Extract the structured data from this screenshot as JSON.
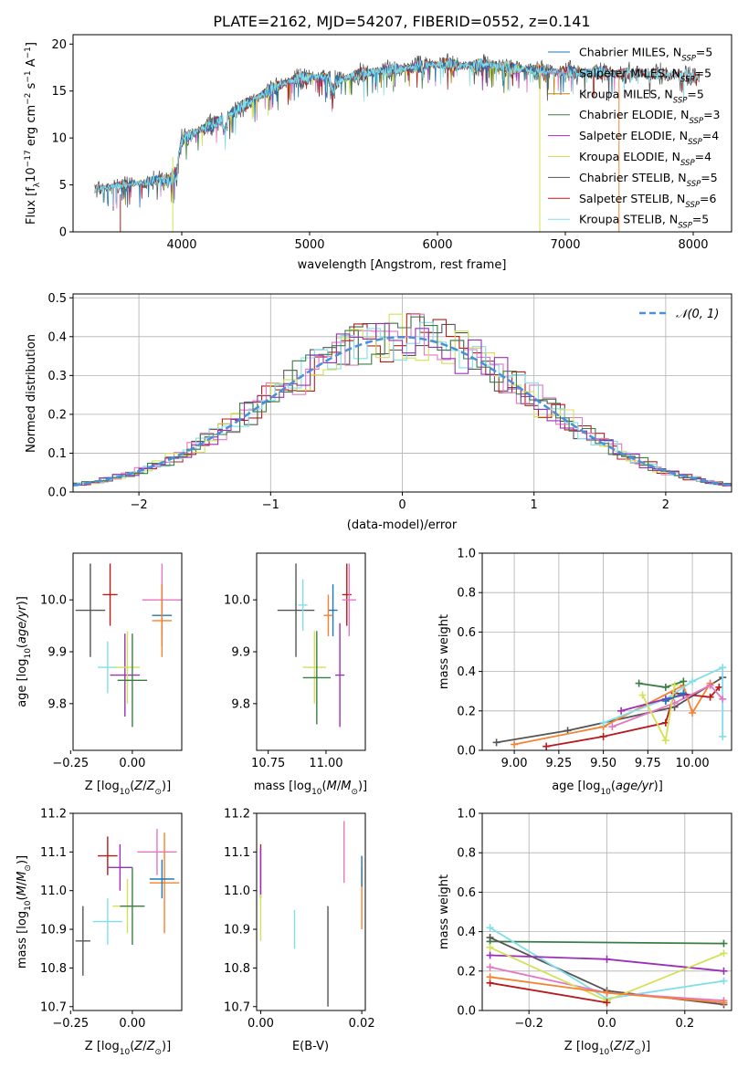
{
  "chart_data": [
    {
      "panel": "spectrum",
      "type": "line",
      "title": "PLATE=2162, MJD=54207, FIBERID=0552, z=0.141",
      "xlabel": "wavelength [Angstrom, rest frame]",
      "ylabel_parts": [
        "Flux [f",
        "λ",
        "10",
        "−17",
        " erg cm",
        "−2",
        " s",
        "−1",
        " A",
        "−1",
        "]"
      ],
      "xlim": [
        3150,
        8300
      ],
      "ylim": [
        0,
        21
      ],
      "xticks": [
        4000,
        5000,
        6000,
        7000,
        8000
      ],
      "yticks": [
        0,
        5,
        10,
        15,
        20
      ],
      "legend_position": "upper right",
      "anchors": [
        [
          3350,
          4.6
        ],
        [
          3500,
          5.0
        ],
        [
          3700,
          5.2
        ],
        [
          3800,
          5.6
        ],
        [
          3900,
          6.3
        ],
        [
          3960,
          7.0
        ],
        [
          4000,
          9.8
        ],
        [
          4100,
          10.6
        ],
        [
          4200,
          11.2
        ],
        [
          4300,
          11.9
        ],
        [
          4500,
          13.6
        ],
        [
          4700,
          15.2
        ],
        [
          4900,
          16.4
        ],
        [
          5100,
          16.5
        ],
        [
          5200,
          16.1
        ],
        [
          5400,
          16.8
        ],
        [
          5600,
          17.2
        ],
        [
          5800,
          17.5
        ],
        [
          6000,
          17.9
        ],
        [
          6200,
          17.7
        ],
        [
          6400,
          17.8
        ],
        [
          6600,
          17.4
        ],
        [
          6800,
          17.2
        ],
        [
          7000,
          17.0
        ],
        [
          7200,
          17.0
        ],
        [
          7400,
          16.9
        ],
        [
          7600,
          16.9
        ],
        [
          7800,
          16.8
        ],
        [
          8000,
          16.6
        ],
        [
          8050,
          16.5
        ]
      ],
      "series": [
        {
          "name_base": "Chabrier MILES, N",
          "name_sub": "SSP",
          "name_tail": "=5",
          "color": "#1f77b4",
          "x_range": [
            3320,
            7420
          ]
        },
        {
          "name_base": "Salpeter MILES, N",
          "name_sub": "SSP",
          "name_tail": "=5",
          "color": "#e377c2",
          "x_range": [
            3320,
            7420
          ]
        },
        {
          "name_base": "Kroupa MILES, N",
          "name_sub": "SSP",
          "name_tail": "=5",
          "color": "#b8860b",
          "x_range": [
            3320,
            7420
          ]
        },
        {
          "name_base": "Chabrier ELODIE, N",
          "name_sub": "SSP",
          "name_tail": "=3",
          "color": "#3a7d44",
          "x_range": [
            3900,
            6800
          ]
        },
        {
          "name_base": "Salpeter ELODIE, N",
          "name_sub": "SSP",
          "name_tail": "=4",
          "color": "#9b30b8",
          "x_range": [
            3900,
            6800
          ]
        },
        {
          "name_base": "Kroupa ELODIE, N",
          "name_sub": "SSP",
          "name_tail": "=4",
          "color": "#d4e157",
          "x_range": [
            3900,
            6800
          ]
        },
        {
          "name_base": "Chabrier STELIB, N",
          "name_sub": "SSP",
          "name_tail": "=5",
          "color": "#555555",
          "x_range": [
            3320,
            8050
          ]
        },
        {
          "name_base": "Salpeter STELIB, N",
          "name_sub": "SSP",
          "name_tail": "=6",
          "color": "#b71c1c",
          "x_range": [
            3320,
            8050
          ]
        },
        {
          "name_base": "Kroupa STELIB, N",
          "name_sub": "SSP",
          "name_tail": "=5",
          "color": "#80deea",
          "x_range": [
            3320,
            8050
          ]
        }
      ]
    },
    {
      "panel": "residual-histogram",
      "type": "line",
      "xlabel": "(data-model)/error",
      "ylabel": "Normed distribution",
      "xlim": [
        -2.5,
        2.5
      ],
      "ylim": [
        0,
        0.51
      ],
      "xticks": [
        -2,
        -1,
        0,
        1,
        2
      ],
      "yticks": [
        0.0,
        0.1,
        0.2,
        0.3,
        0.4,
        0.5
      ],
      "grid": true,
      "legend_position": "upper right",
      "reference_curve": {
        "name": "𝒩(0, 1)",
        "mean": 0,
        "sigma": 1,
        "color": "#4a90d9"
      },
      "bin_width": 0.1,
      "histogram_colors": [
        "#555555",
        "#b71c1c",
        "#e377c2",
        "#d4e157",
        "#80deea",
        "#3a7d44",
        "#9b30b8"
      ]
    },
    {
      "panel": "age-vs-Z",
      "type": "scatter",
      "xlabel": "Z [log10(Z/Z⊙)]",
      "ylabel": "age  [log10(age/yr)]",
      "xlim": [
        -0.24,
        0.2
      ],
      "ylim": [
        9.71,
        10.09
      ],
      "xticks": [
        -0.25,
        0.0
      ],
      "yticks": [
        9.8,
        9.9,
        10.0
      ],
      "points": [
        {
          "x": -0.17,
          "y": 9.98,
          "x_err": 0.06,
          "y_err": 0.09,
          "color": "#555555"
        },
        {
          "x": -0.1,
          "y": 9.87,
          "x_err": 0.04,
          "y_err": 0.05,
          "color": "#80deea"
        },
        {
          "x": -0.09,
          "y": 10.01,
          "x_err": 0.03,
          "y_err": 0.06,
          "color": "#b71c1c"
        },
        {
          "x": -0.03,
          "y": 9.855,
          "x_err": 0.06,
          "y_err": 0.08,
          "color": "#9b30b8"
        },
        {
          "x": -0.02,
          "y": 9.87,
          "x_err": 0.05,
          "y_err": 0.07,
          "color": "#d4e157"
        },
        {
          "x": 0.0,
          "y": 9.845,
          "x_err": 0.06,
          "y_err": 0.09,
          "color": "#3a7d44"
        },
        {
          "x": 0.12,
          "y": 10.0,
          "x_err": 0.08,
          "y_err": 0.07,
          "color": "#e377c2"
        },
        {
          "x": 0.12,
          "y": 9.97,
          "x_err": 0.04,
          "y_err": 0.06,
          "color": "#1f77b4"
        },
        {
          "x": 0.12,
          "y": 9.96,
          "x_err": 0.04,
          "y_err": 0.07,
          "color": "#f58231"
        }
      ]
    },
    {
      "panel": "age-vs-mass",
      "type": "scatter",
      "xlabel": "mass [log10(M/M⊙)]",
      "ylabel": "",
      "xlim": [
        10.7,
        11.17
      ],
      "ylim": [
        9.71,
        10.09
      ],
      "xticks": [
        10.75,
        11.0
      ],
      "yticks": [
        9.8,
        9.9,
        10.0
      ],
      "points": [
        {
          "x": 10.87,
          "y": 9.98,
          "x_err": 0.08,
          "y_err": 0.09,
          "color": "#555555"
        },
        {
          "x": 10.9,
          "y": 9.99,
          "x_err": 0.02,
          "y_err": 0.05,
          "color": "#80deea"
        },
        {
          "x": 10.95,
          "y": 9.87,
          "x_err": 0.05,
          "y_err": 0.07,
          "color": "#d4e157"
        },
        {
          "x": 10.96,
          "y": 9.85,
          "x_err": 0.06,
          "y_err": 0.09,
          "color": "#3a7d44"
        },
        {
          "x": 11.06,
          "y": 9.855,
          "x_err": 0.02,
          "y_err": 0.1,
          "color": "#9b30b8"
        },
        {
          "x": 11.09,
          "y": 10.01,
          "x_err": 0.02,
          "y_err": 0.06,
          "color": "#b71c1c"
        },
        {
          "x": 11.1,
          "y": 10.0,
          "x_err": 0.03,
          "y_err": 0.07,
          "color": "#e377c2"
        },
        {
          "x": 11.03,
          "y": 9.98,
          "x_err": 0.02,
          "y_err": 0.05,
          "color": "#1f77b4"
        },
        {
          "x": 11.01,
          "y": 9.97,
          "x_err": 0.02,
          "y_err": 0.04,
          "color": "#f58231"
        }
      ]
    },
    {
      "panel": "mass-weight-vs-age",
      "type": "line",
      "xlabel": "age  [log10(age/yr)]",
      "ylabel": "mass weight",
      "xlim": [
        8.82,
        10.22
      ],
      "ylim": [
        0,
        1.0
      ],
      "xticks": [
        9.0,
        9.25,
        9.5,
        9.75,
        10.0
      ],
      "yticks": [
        0.0,
        0.2,
        0.4,
        0.6,
        0.8,
        1.0
      ],
      "grid": true,
      "series": [
        {
          "color": "#555555",
          "points": [
            [
              8.9,
              0.04
            ],
            [
              9.3,
              0.1
            ],
            [
              9.9,
              0.22
            ],
            [
              10.17,
              0.37
            ]
          ]
        },
        {
          "color": "#f58231",
          "points": [
            [
              9.0,
              0.03
            ],
            [
              9.5,
              0.12
            ],
            [
              9.95,
              0.33
            ],
            [
              10.0,
              0.19
            ],
            [
              10.1,
              0.34
            ]
          ]
        },
        {
          "color": "#b71c1c",
          "points": [
            [
              9.18,
              0.02
            ],
            [
              9.5,
              0.07
            ],
            [
              9.85,
              0.14
            ],
            [
              9.9,
              0.29
            ],
            [
              10.1,
              0.27
            ],
            [
              10.15,
              0.32
            ]
          ]
        },
        {
          "color": "#80deea",
          "points": [
            [
              9.5,
              0.14
            ],
            [
              9.85,
              0.26
            ],
            [
              10.0,
              0.35
            ],
            [
              10.17,
              0.42
            ],
            [
              10.17,
              0.07
            ]
          ]
        },
        {
          "color": "#e377c2",
          "points": [
            [
              9.55,
              0.12
            ],
            [
              9.9,
              0.24
            ],
            [
              10.1,
              0.33
            ],
            [
              10.17,
              0.26
            ]
          ]
        },
        {
          "color": "#3a7d44",
          "points": [
            [
              9.7,
              0.34
            ],
            [
              9.85,
              0.32
            ],
            [
              9.95,
              0.35
            ]
          ]
        },
        {
          "color": "#9b30b8",
          "points": [
            [
              9.6,
              0.2
            ],
            [
              9.85,
              0.26
            ],
            [
              9.95,
              0.28
            ]
          ]
        },
        {
          "color": "#d4e157",
          "points": [
            [
              9.72,
              0.28
            ],
            [
              9.85,
              0.05
            ],
            [
              9.9,
              0.33
            ]
          ]
        },
        {
          "color": "#1f77b4",
          "points": [
            [
              9.85,
              0.25
            ],
            [
              9.95,
              0.29
            ]
          ]
        }
      ]
    },
    {
      "panel": "mass-vs-Z",
      "type": "scatter",
      "xlabel": "Z [log10(Z/Z⊙)]",
      "ylabel": "mass [log10(M/M⊙)]",
      "xlim": [
        -0.24,
        0.2
      ],
      "ylim": [
        10.69,
        11.2
      ],
      "xticks": [
        -0.25,
        0.0
      ],
      "yticks": [
        10.7,
        10.8,
        10.9,
        11.0,
        11.1,
        11.2
      ],
      "points": [
        {
          "x": -0.2,
          "y": 10.87,
          "x_err": 0.03,
          "y_err": 0.09,
          "color": "#555555"
        },
        {
          "x": -0.1,
          "y": 10.92,
          "x_err": 0.06,
          "y_err": 0.06,
          "color": "#80deea"
        },
        {
          "x": -0.1,
          "y": 11.09,
          "x_err": 0.04,
          "y_err": 0.05,
          "color": "#b71c1c"
        },
        {
          "x": -0.05,
          "y": 11.06,
          "x_err": 0.05,
          "y_err": 0.06,
          "color": "#9b30b8"
        },
        {
          "x": -0.02,
          "y": 10.96,
          "x_err": 0.06,
          "y_err": 0.07,
          "color": "#d4e157"
        },
        {
          "x": 0.0,
          "y": 10.96,
          "x_err": 0.05,
          "y_err": 0.1,
          "color": "#3a7d44"
        },
        {
          "x": 0.1,
          "y": 11.1,
          "x_err": 0.08,
          "y_err": 0.06,
          "color": "#e377c2"
        },
        {
          "x": 0.13,
          "y": 11.02,
          "x_err": 0.06,
          "y_err": 0.13,
          "color": "#f58231"
        },
        {
          "x": 0.12,
          "y": 11.03,
          "x_err": 0.05,
          "y_err": 0.05,
          "color": "#1f77b4"
        }
      ]
    },
    {
      "panel": "mass-vs-EBV",
      "type": "scatter",
      "xlabel": "E(B-V)",
      "ylabel": "",
      "xlim": [
        -0.0008,
        0.0207
      ],
      "ylim": [
        10.69,
        11.2
      ],
      "xticks": [
        0.0,
        0.02
      ],
      "yticks": [
        10.7,
        10.8,
        10.9,
        11.0,
        11.1,
        11.2
      ],
      "points": [
        {
          "x": 0.0,
          "y": 11.05,
          "y_err": 0.07,
          "color": "#b71c1c"
        },
        {
          "x": 0.0,
          "y": 10.93,
          "y_err": 0.06,
          "color": "#d4e157"
        },
        {
          "x": 0.0,
          "y": 11.05,
          "y_err": 0.06,
          "color": "#9b30b8"
        },
        {
          "x": 0.0067,
          "y": 10.9,
          "y_err": 0.05,
          "color": "#80deea"
        },
        {
          "x": 0.0133,
          "y": 10.83,
          "y_err": 0.13,
          "color": "#555555"
        },
        {
          "x": 0.0165,
          "y": 11.1,
          "y_err": 0.08,
          "color": "#e377c2"
        },
        {
          "x": 0.02,
          "y": 10.98,
          "y_err": 0.08,
          "color": "#f58231"
        },
        {
          "x": 0.02,
          "y": 11.05,
          "y_err": 0.04,
          "color": "#1f77b4"
        }
      ]
    },
    {
      "panel": "mass-weight-vs-Z",
      "type": "line",
      "xlabel": "Z [log10(Z/Z⊙)]",
      "ylabel": "mass weight",
      "xlim": [
        -0.32,
        0.32
      ],
      "ylim": [
        0,
        1.0
      ],
      "xticks": [
        -0.2,
        0.0,
        0.2
      ],
      "yticks": [
        0.0,
        0.2,
        0.4,
        0.6,
        0.8,
        1.0
      ],
      "grid": true,
      "series": [
        {
          "color": "#3a7d44",
          "points": [
            [
              -0.3,
              0.35
            ],
            [
              0.3,
              0.34
            ]
          ]
        },
        {
          "color": "#555555",
          "points": [
            [
              -0.3,
              0.37
            ],
            [
              0.0,
              0.1
            ],
            [
              0.3,
              0.03
            ]
          ]
        },
        {
          "color": "#80deea",
          "points": [
            [
              -0.3,
              0.42
            ],
            [
              0.0,
              0.06
            ],
            [
              0.3,
              0.15
            ]
          ]
        },
        {
          "color": "#9b30b8",
          "points": [
            [
              -0.3,
              0.28
            ],
            [
              0.0,
              0.26
            ],
            [
              0.3,
              0.2
            ]
          ]
        },
        {
          "color": "#e377c2",
          "points": [
            [
              -0.3,
              0.22
            ],
            [
              0.0,
              0.09
            ],
            [
              0.3,
              0.05
            ]
          ]
        },
        {
          "color": "#d4e157",
          "points": [
            [
              -0.3,
              0.32
            ],
            [
              0.0,
              0.05
            ],
            [
              0.3,
              0.29
            ]
          ]
        },
        {
          "color": "#b71c1c",
          "points": [
            [
              -0.3,
              0.14
            ],
            [
              0.0,
              0.04
            ]
          ]
        },
        {
          "color": "#f58231",
          "points": [
            [
              -0.3,
              0.17
            ],
            [
              0.0,
              0.09
            ],
            [
              0.3,
              0.04
            ]
          ]
        }
      ]
    }
  ]
}
